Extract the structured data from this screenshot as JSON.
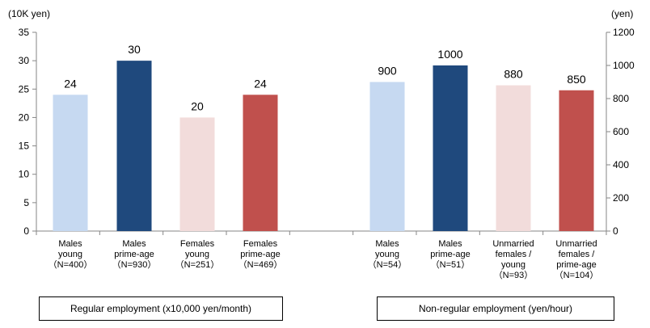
{
  "chart_data": [
    {
      "type": "bar",
      "ylabel": "(10K yen)",
      "ylim": [
        0,
        35
      ],
      "yticks": [
        0,
        5,
        10,
        15,
        20,
        25,
        30,
        35
      ],
      "grid": false,
      "caption": "Regular employment (x10,000 yen/month)",
      "categories": [
        [
          "Males",
          "young",
          "（N=400）"
        ],
        [
          "Males",
          "prime-age",
          "（N=930）"
        ],
        [
          "Females",
          "young",
          "（N=251）"
        ],
        [
          "Females",
          "prime-age",
          "（N=469）"
        ]
      ],
      "values": [
        24,
        30,
        20,
        24
      ],
      "colors": [
        "#c6d9f1",
        "#1f497d",
        "#f2dcdb",
        "#c0504d"
      ]
    },
    {
      "type": "bar",
      "ylabel": "(yen)",
      "ylim": [
        0,
        1200
      ],
      "yticks": [
        0,
        200,
        400,
        600,
        800,
        1000,
        1200
      ],
      "grid": false,
      "caption": "Non-regular employment (yen/hour)",
      "categories": [
        [
          "Males",
          "young",
          "（N=54）"
        ],
        [
          "Males",
          "prime-age",
          "（N=51）"
        ],
        [
          "Unmarried",
          "females /",
          "young",
          "（N=93）"
        ],
        [
          "Unmarried",
          "females /",
          "prime-age",
          "（N=104）"
        ]
      ],
      "values": [
        900,
        1000,
        880,
        850
      ],
      "colors": [
        "#c6d9f1",
        "#1f497d",
        "#f2dcdb",
        "#c0504d"
      ]
    }
  ]
}
